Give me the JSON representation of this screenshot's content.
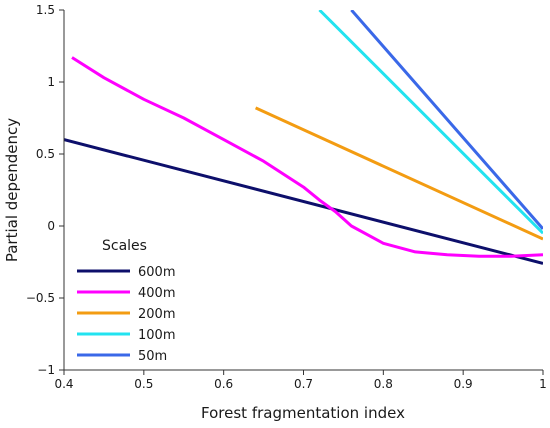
{
  "chart_data": {
    "type": "line",
    "xlabel": "Forest fragmentation index",
    "ylabel": "Partial dependency",
    "xlim": [
      0.4,
      1.0
    ],
    "ylim": [
      -1.0,
      1.5
    ],
    "x_ticks": [
      "0.4",
      "0.5",
      "0.6",
      "0.7",
      "0.8",
      "0.9",
      "1"
    ],
    "y_ticks": [
      "−1",
      "−0.5",
      "0",
      "0.5",
      "1",
      "1.5"
    ],
    "grid": false,
    "legend": {
      "title": "Scales",
      "position": "bottom-left"
    },
    "series": [
      {
        "name": "600m",
        "color": "#0d0f6b",
        "points": [
          [
            0.4,
            0.6
          ],
          [
            1.0,
            -0.26
          ]
        ]
      },
      {
        "name": "400m",
        "color": "#ff00ff",
        "points": [
          [
            0.41,
            1.17
          ],
          [
            0.45,
            1.03
          ],
          [
            0.5,
            0.88
          ],
          [
            0.55,
            0.75
          ],
          [
            0.6,
            0.6
          ],
          [
            0.65,
            0.45
          ],
          [
            0.7,
            0.27
          ],
          [
            0.72,
            0.18
          ],
          [
            0.74,
            0.1
          ],
          [
            0.76,
            0.0
          ],
          [
            0.8,
            -0.12
          ],
          [
            0.84,
            -0.18
          ],
          [
            0.88,
            -0.2
          ],
          [
            0.92,
            -0.21
          ],
          [
            0.96,
            -0.21
          ],
          [
            1.0,
            -0.2
          ]
        ]
      },
      {
        "name": "200m",
        "color": "#f39c12",
        "points": [
          [
            0.64,
            0.82
          ],
          [
            1.0,
            -0.09
          ]
        ]
      },
      {
        "name": "100m",
        "color": "#22e3f0",
        "points": [
          [
            0.72,
            1.5
          ],
          [
            1.0,
            -0.05
          ]
        ]
      },
      {
        "name": "50m",
        "color": "#3a68e8",
        "points": [
          [
            0.76,
            1.5
          ],
          [
            1.0,
            -0.02
          ]
        ]
      }
    ]
  }
}
